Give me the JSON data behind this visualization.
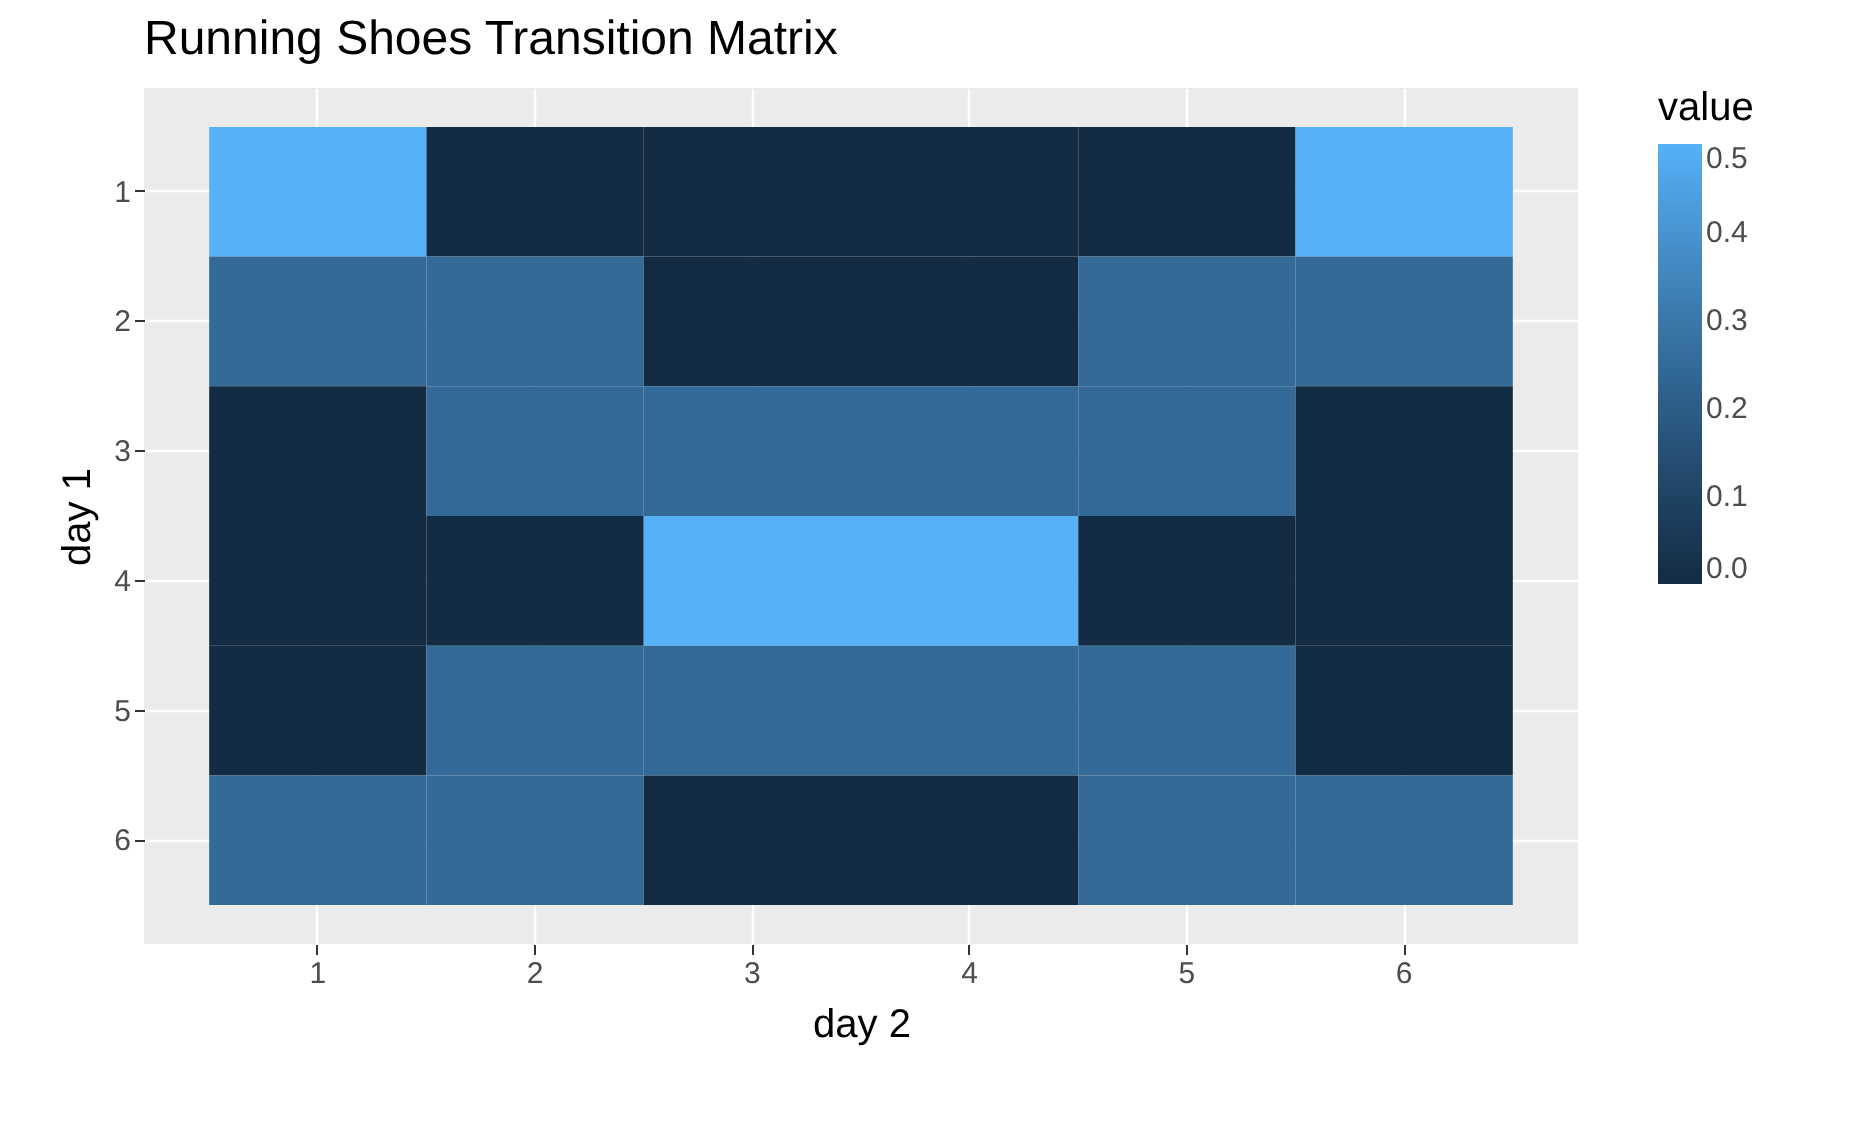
{
  "chart_data": {
    "type": "heatmap",
    "title": "Running Shoes Transition Matrix",
    "xlabel": "day 2",
    "ylabel": "day 1",
    "legend_title": "value",
    "categories": [
      "1",
      "2",
      "3",
      "4",
      "5",
      "6"
    ],
    "y_categories": [
      "1",
      "2",
      "3",
      "4",
      "5",
      "6"
    ],
    "cells": [
      [
        0.5,
        0,
        0,
        0,
        0,
        0.5
      ],
      [
        0.25,
        0.25,
        0,
        0,
        0.25,
        0.25
      ],
      [
        0,
        0.25,
        0.25,
        0.25,
        0.25,
        0
      ],
      [
        0,
        0,
        0.5,
        0.5,
        0,
        0
      ],
      [
        0,
        0.25,
        0.25,
        0.25,
        0.25,
        0
      ],
      [
        0.25,
        0.25,
        0,
        0,
        0.25,
        0.25
      ]
    ],
    "clim": [
      0,
      0.5
    ],
    "cticks": [
      {
        "value": 0,
        "label": "0.0"
      },
      0.1,
      0.2,
      0.3,
      0.4,
      0.5
    ],
    "colors": [
      "#132b43",
      "#56b1f7"
    ],
    "grid": true
  }
}
